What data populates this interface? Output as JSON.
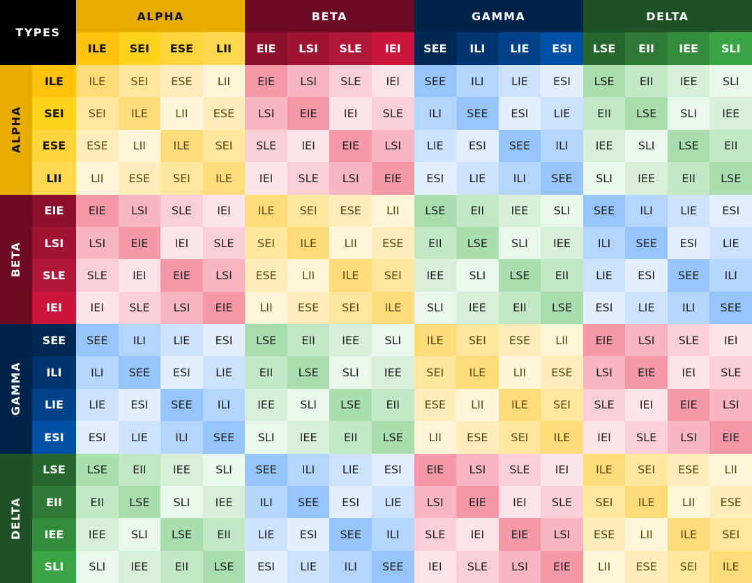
{
  "corner_label": "TYPES",
  "quadras": [
    {
      "name": "ALPHA",
      "color": "#e8ac00",
      "text_color": "#111111",
      "types": [
        "ILE",
        "SEI",
        "ESE",
        "LII"
      ],
      "type_header_colors": [
        "#ffc20e",
        "#ffd21e",
        "#ffd43d",
        "#ffd84f"
      ]
    },
    {
      "name": "BETA",
      "color": "#6d0a22",
      "text_color": "#ffffff",
      "types": [
        "EIE",
        "LSI",
        "SLE",
        "IEI"
      ],
      "type_header_colors": [
        "#8c0f2e",
        "#9f1333",
        "#b01637",
        "#cc153b"
      ]
    },
    {
      "name": "GAMMA",
      "color": "#002349",
      "text_color": "#ffffff",
      "types": [
        "SEE",
        "ILI",
        "LIE",
        "ESI"
      ],
      "type_header_colors": [
        "#002855",
        "#003470",
        "#00428a",
        "#0050a8"
      ]
    },
    {
      "name": "DELTA",
      "color": "#1e5226",
      "text_color": "#ffffff",
      "types": [
        "LSE",
        "EII",
        "IEE",
        "SLI"
      ],
      "type_header_colors": [
        "#27672f",
        "#2d7935",
        "#338c3c",
        "#3aa343"
      ]
    }
  ],
  "block_map": [
    [
      0,
      1,
      2,
      3
    ],
    [
      1,
      0,
      3,
      2
    ],
    [
      2,
      3,
      0,
      1
    ],
    [
      3,
      2,
      1,
      0
    ]
  ],
  "cell_palettes": [
    [
      "#ffdc7a",
      "#ffe79e",
      "#ffeebc",
      "#fff5d8"
    ],
    [
      "#f598a8",
      "#f8b5c2",
      "#fbcfd8",
      "#fde4e9"
    ],
    [
      "#96c5fb",
      "#b5d6fc",
      "#cde3fd",
      "#e3eefe"
    ],
    [
      "#a9dfaf",
      "#c3e8c6",
      "#d8f0da",
      "#eaf7eb"
    ]
  ],
  "cell_text_colors": [
    "#5a4610",
    "#202020",
    "#202020",
    "#202020"
  ],
  "matrix": [
    [
      "ILE",
      "SEI",
      "ESE",
      "LII",
      "EIE",
      "LSI",
      "SLE",
      "IEI",
      "SEE",
      "ILI",
      "LIE",
      "ESI",
      "LSE",
      "EII",
      "IEE",
      "SLI"
    ],
    [
      "SEI",
      "ILE",
      "LII",
      "ESE",
      "LSI",
      "EIE",
      "IEI",
      "SLE",
      "ILI",
      "SEE",
      "ESI",
      "LIE",
      "EII",
      "LSE",
      "SLI",
      "IEE"
    ],
    [
      "ESE",
      "LII",
      "ILE",
      "SEI",
      "SLE",
      "IEI",
      "EIE",
      "LSI",
      "LIE",
      "ESI",
      "SEE",
      "ILI",
      "IEE",
      "SLI",
      "LSE",
      "EII"
    ],
    [
      "LII",
      "ESE",
      "SEI",
      "ILE",
      "IEI",
      "SLE",
      "LSI",
      "EIE",
      "ESI",
      "LIE",
      "ILI",
      "SEE",
      "SLI",
      "IEE",
      "EII",
      "LSE"
    ],
    [
      "EIE",
      "LSI",
      "SLE",
      "IEI",
      "ILE",
      "SEI",
      "ESE",
      "LII",
      "LSE",
      "EII",
      "IEE",
      "SLI",
      "SEE",
      "ILI",
      "LIE",
      "ESI"
    ],
    [
      "LSI",
      "EIE",
      "IEI",
      "SLE",
      "SEI",
      "ILE",
      "LII",
      "ESE",
      "EII",
      "LSE",
      "SLI",
      "IEE",
      "ILI",
      "SEE",
      "ESI",
      "LIE"
    ],
    [
      "SLE",
      "IEI",
      "EIE",
      "LSI",
      "ESE",
      "LII",
      "ILE",
      "SEI",
      "IEE",
      "SLI",
      "LSE",
      "EII",
      "LIE",
      "ESI",
      "SEE",
      "ILI"
    ],
    [
      "IEI",
      "SLE",
      "LSI",
      "EIE",
      "LII",
      "ESE",
      "SEI",
      "ILE",
      "SLI",
      "IEE",
      "EII",
      "LSE",
      "ESI",
      "LIE",
      "ILI",
      "SEE"
    ],
    [
      "SEE",
      "ILI",
      "LIE",
      "ESI",
      "LSE",
      "EII",
      "IEE",
      "SLI",
      "ILE",
      "SEI",
      "ESE",
      "LII",
      "EIE",
      "LSI",
      "SLE",
      "IEI"
    ],
    [
      "ILI",
      "SEE",
      "ESI",
      "LIE",
      "EII",
      "LSE",
      "SLI",
      "IEE",
      "SEI",
      "ILE",
      "LII",
      "ESE",
      "LSI",
      "EIE",
      "IEI",
      "SLE"
    ],
    [
      "LIE",
      "ESI",
      "SEE",
      "ILI",
      "IEE",
      "SLI",
      "LSE",
      "EII",
      "ESE",
      "LII",
      "ILE",
      "SEI",
      "SLE",
      "IEI",
      "EIE",
      "LSI"
    ],
    [
      "ESI",
      "LIE",
      "ILI",
      "SEE",
      "SLI",
      "IEE",
      "EII",
      "LSE",
      "LII",
      "ESE",
      "SEI",
      "ILE",
      "IEI",
      "SLE",
      "LSI",
      "EIE"
    ],
    [
      "LSE",
      "EII",
      "IEE",
      "SLI",
      "SEE",
      "ILI",
      "LIE",
      "ESI",
      "EIE",
      "LSI",
      "SLE",
      "IEI",
      "ILE",
      "SEI",
      "ESE",
      "LII"
    ],
    [
      "EII",
      "LSE",
      "SLI",
      "IEE",
      "ILI",
      "SEE",
      "ESI",
      "LIE",
      "LSI",
      "EIE",
      "IEI",
      "SLE",
      "SEI",
      "ILE",
      "LII",
      "ESE"
    ],
    [
      "IEE",
      "SLI",
      "LSE",
      "EII",
      "LIE",
      "ESI",
      "SEE",
      "ILI",
      "SLE",
      "IEI",
      "EIE",
      "LSI",
      "ESE",
      "LII",
      "ILE",
      "SEI"
    ],
    [
      "SLI",
      "IEE",
      "EII",
      "LSE",
      "ESI",
      "LIE",
      "ILI",
      "SEE",
      "IEI",
      "SLE",
      "LSI",
      "EIE",
      "LII",
      "ESE",
      "SEI",
      "ILE"
    ]
  ]
}
